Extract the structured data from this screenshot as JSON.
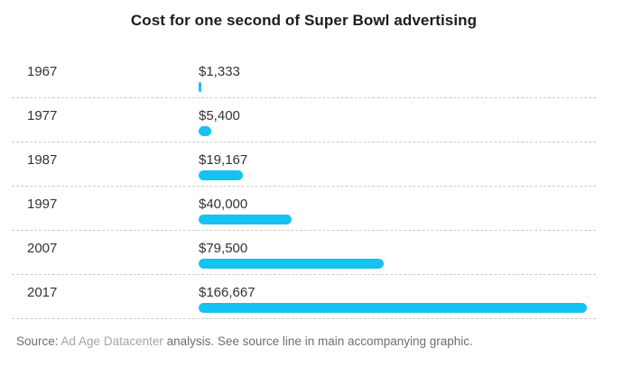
{
  "chart_data": {
    "type": "bar",
    "orientation": "horizontal",
    "title": "Cost for one second of Super Bowl advertising",
    "categories": [
      "1967",
      "1977",
      "1987",
      "1997",
      "2007",
      "2017"
    ],
    "values": [
      1333,
      5400,
      19167,
      40000,
      79500,
      166667
    ],
    "value_labels": [
      "$1,333",
      "$5,400",
      "$19,167",
      "$40,000",
      "$79,500",
      "$166,667"
    ],
    "xlim": [
      0,
      166667
    ],
    "bar_color": "#14c3f1",
    "separator_style": "dashed",
    "legend": "none"
  },
  "footer": {
    "source_prefix": "Source: ",
    "source_name": "Ad Age Datacenter",
    "source_suffix": " analysis. See source line in main accompanying graphic."
  }
}
